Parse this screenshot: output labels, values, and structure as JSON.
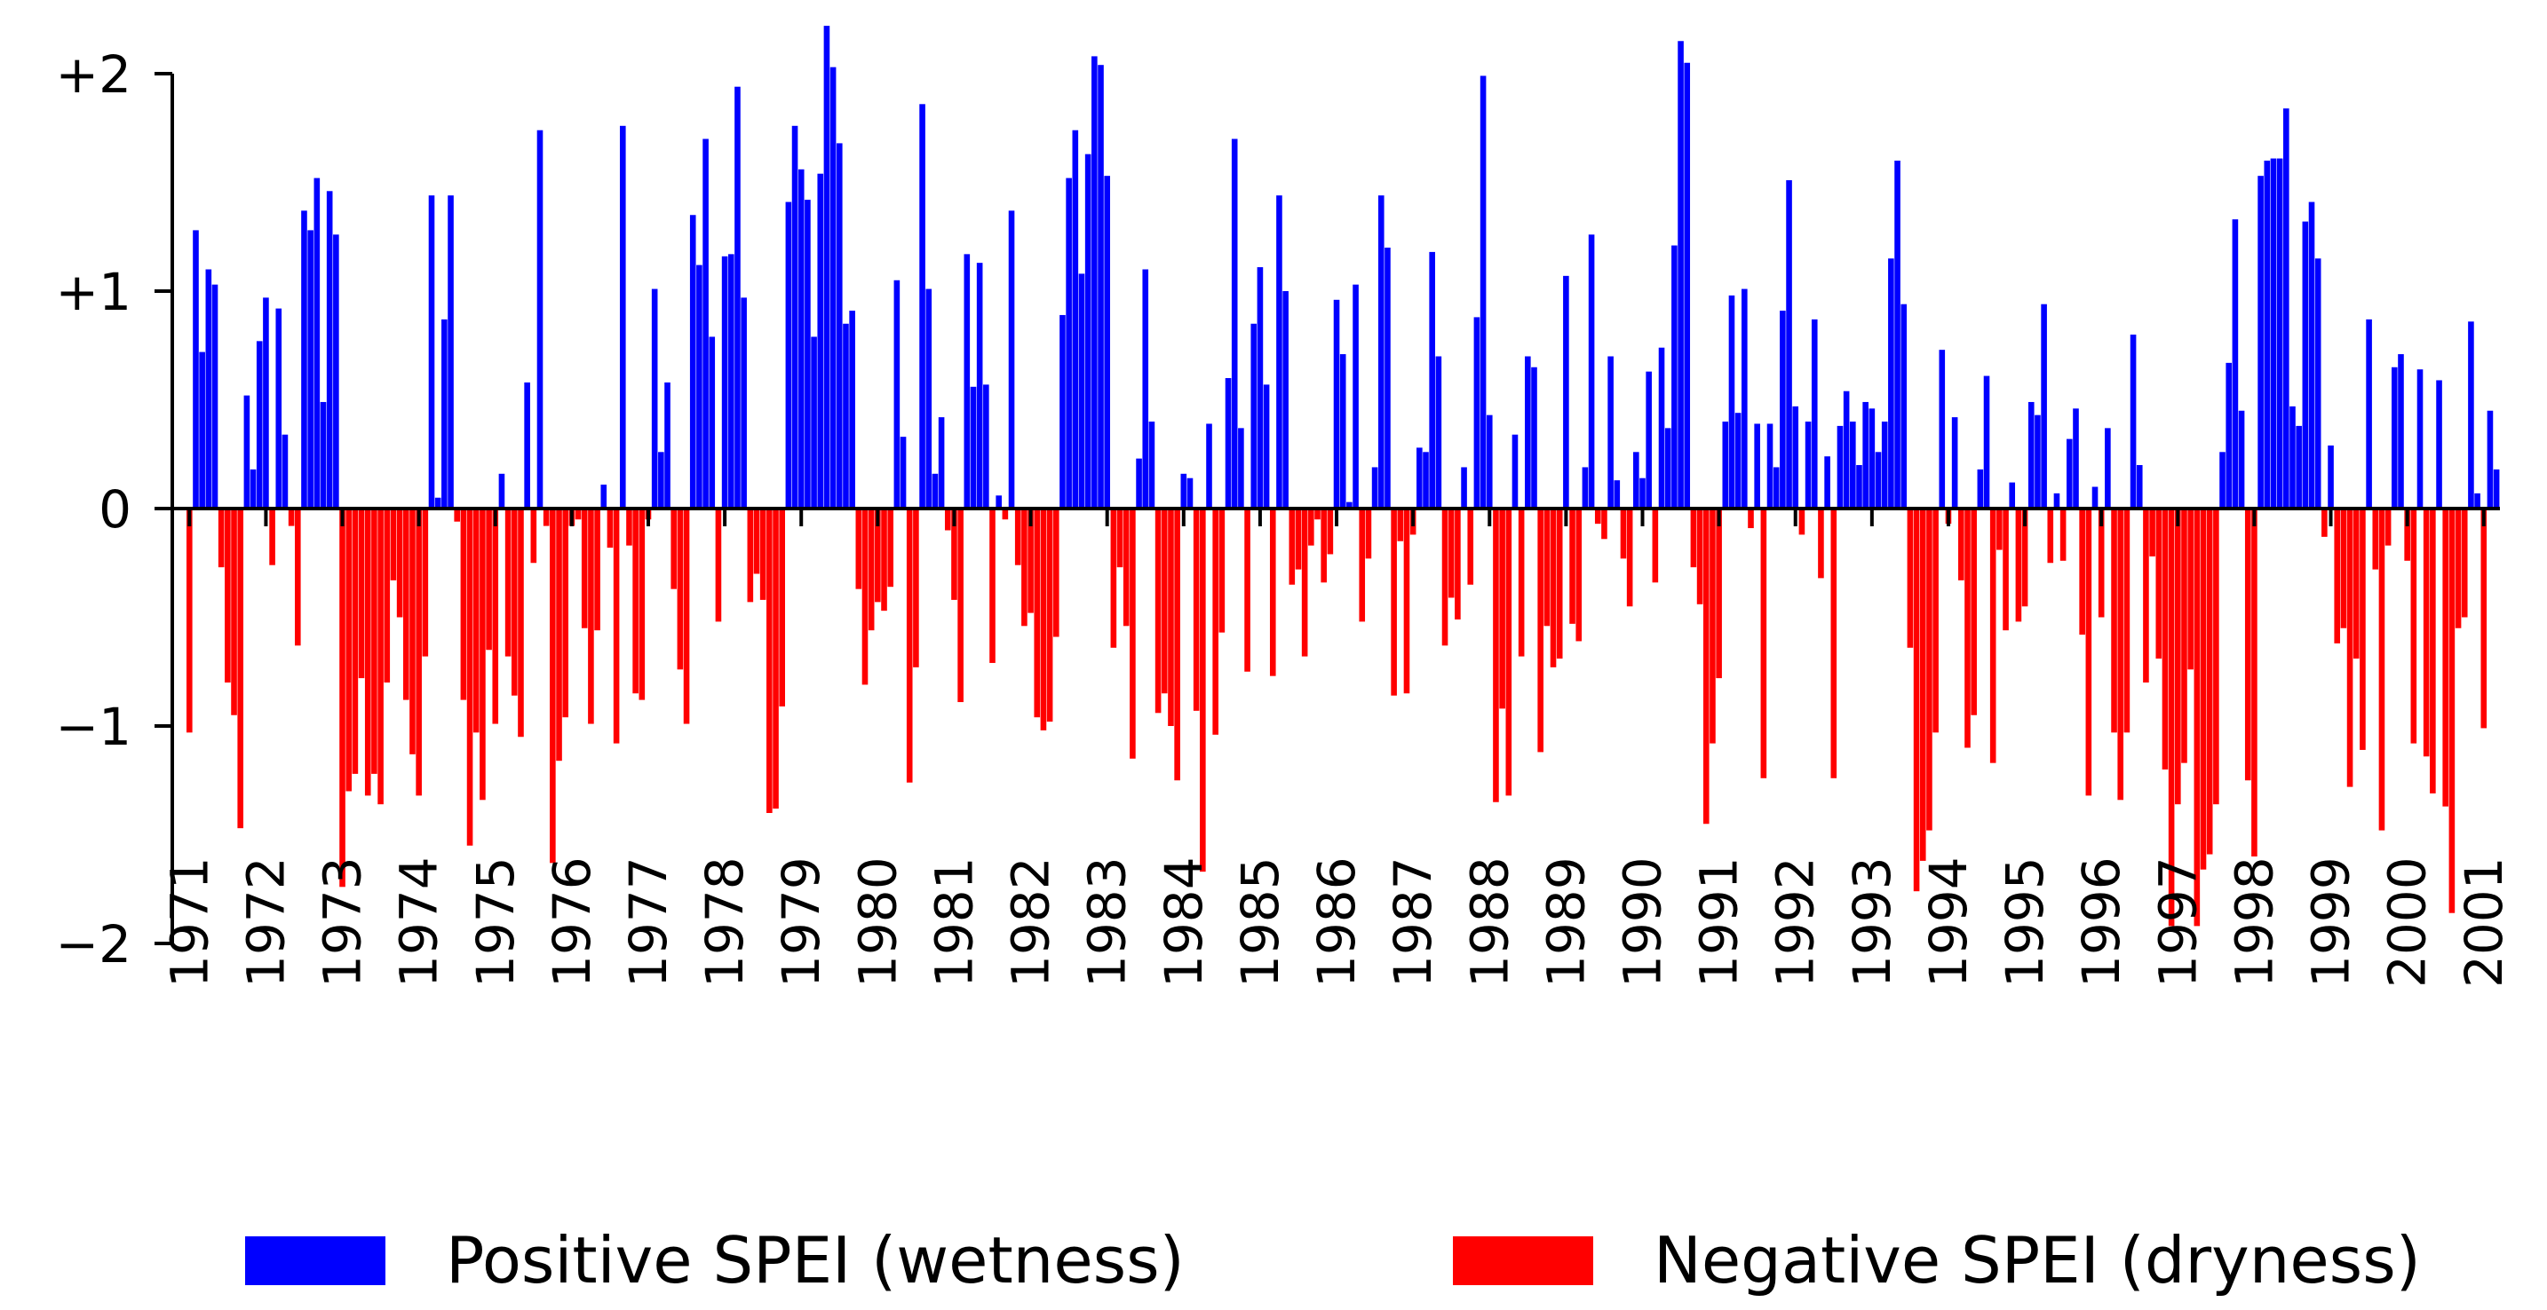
{
  "chart_data": {
    "type": "bar",
    "title": "",
    "xlabel": "",
    "ylabel": "",
    "ylim": [
      -2.05,
      2.2
    ],
    "y_ticks": [
      {
        "value": 2,
        "label": "+2"
      },
      {
        "value": 1,
        "label": "+1"
      },
      {
        "value": 0,
        "label": "0"
      },
      {
        "value": -1,
        "label": "−1"
      },
      {
        "value": -2,
        "label": "−2"
      }
    ],
    "x_tick_labels": [
      "1971",
      "1972",
      "1973",
      "1974",
      "1975",
      "1976",
      "1977",
      "1978",
      "1979",
      "1980",
      "1981",
      "1982",
      "1983",
      "1984",
      "1985",
      "1986",
      "1987",
      "1988",
      "1989",
      "1990",
      "1991",
      "1992",
      "1993",
      "1994",
      "1995",
      "1996",
      "1997",
      "1998",
      "1999",
      "2000",
      "2001"
    ],
    "start_year": 1971,
    "months_per_year": 12,
    "colors": {
      "positive": "#0000ff",
      "negative": "#ff0000",
      "axis": "#000000"
    },
    "series": [
      {
        "name": "Positive SPEI (wetness)",
        "color": "#0000ff"
      },
      {
        "name": "Negative SPEI (dryness)",
        "color": "#ff0000"
      }
    ],
    "values": [
      -1.03,
      1.28,
      0.72,
      1.1,
      1.03,
      -0.27,
      -0.8,
      -0.95,
      -1.47,
      0.52,
      0.18,
      0.77,
      0.97,
      -0.26,
      0.92,
      0.34,
      -0.08,
      -0.63,
      1.37,
      1.28,
      1.52,
      0.49,
      1.46,
      1.26,
      -1.74,
      -1.3,
      -1.22,
      -0.78,
      -1.32,
      -1.22,
      -1.36,
      -0.8,
      -0.33,
      -0.5,
      -0.88,
      -1.13,
      -1.32,
      -0.68,
      1.44,
      0.05,
      0.87,
      1.44,
      -0.06,
      -0.88,
      -1.55,
      -1.03,
      -1.34,
      -0.65,
      -0.99,
      0.16,
      -0.68,
      -0.86,
      -1.05,
      0.58,
      -0.25,
      1.74,
      -0.08,
      -1.63,
      -1.16,
      -0.96,
      -0.08,
      -0.05,
      -0.55,
      -0.99,
      -0.56,
      0.11,
      -0.18,
      -1.08,
      1.76,
      -0.17,
      -0.85,
      -0.88,
      -0.05,
      1.01,
      0.26,
      0.58,
      -0.37,
      -0.74,
      -0.99,
      1.35,
      1.12,
      1.7,
      0.79,
      -0.52,
      1.16,
      1.17,
      1.94,
      0.97,
      -0.43,
      -0.3,
      -0.42,
      -1.4,
      -1.38,
      -0.91,
      1.41,
      1.76,
      1.56,
      1.42,
      0.79,
      1.54,
      2.22,
      2.03,
      1.68,
      0.85,
      0.91,
      -0.37,
      -0.81,
      -0.56,
      -0.43,
      -0.47,
      -0.36,
      1.05,
      0.33,
      -1.26,
      -0.73,
      1.86,
      1.01,
      0.16,
      0.42,
      -0.1,
      -0.42,
      -0.89,
      1.17,
      0.56,
      1.13,
      0.57,
      -0.71,
      0.06,
      -0.05,
      1.37,
      -0.26,
      -0.54,
      -0.48,
      -0.96,
      -1.02,
      -0.98,
      -0.59,
      0.89,
      1.52,
      1.74,
      1.08,
      1.63,
      2.08,
      2.04,
      1.53,
      -0.64,
      -0.27,
      -0.54,
      -1.15,
      0.23,
      1.1,
      0.4,
      -0.94,
      -0.85,
      -1.0,
      -1.25,
      0.16,
      0.14,
      -0.93,
      -1.67,
      0.39,
      -1.04,
      -0.57,
      0.6,
      1.7,
      0.37,
      -0.75,
      0.85,
      1.11,
      0.57,
      -0.77,
      1.44,
      1.0,
      -0.35,
      -0.28,
      -0.68,
      -0.17,
      -0.05,
      -0.34,
      -0.21,
      0.96,
      0.71,
      0.03,
      1.03,
      -0.52,
      -0.23,
      0.19,
      1.44,
      1.2,
      -0.86,
      -0.15,
      -0.85,
      -0.12,
      0.28,
      0.26,
      1.18,
      0.7,
      -0.63,
      -0.41,
      -0.51,
      0.19,
      -0.35,
      0.88,
      1.99,
      0.43,
      -1.35,
      -0.92,
      -1.32,
      0.34,
      -0.68,
      0.7,
      0.65,
      -1.12,
      -0.54,
      -0.73,
      -0.69,
      1.07,
      -0.53,
      -0.61,
      0.19,
      1.26,
      -0.07,
      -0.14,
      0.7,
      0.13,
      -0.23,
      -0.45,
      0.26,
      0.14,
      0.63,
      -0.34,
      0.74,
      0.37,
      1.21,
      2.15,
      2.05,
      -0.27,
      -0.44,
      -1.45,
      -1.08,
      -0.78,
      0.4,
      0.98,
      0.44,
      1.01,
      -0.09,
      0.39,
      -1.24,
      0.39,
      0.19,
      0.91,
      1.51,
      0.47,
      -0.12,
      0.4,
      0.87,
      -0.32,
      0.24,
      -1.24,
      0.38,
      0.54,
      0.4,
      0.2,
      0.49,
      0.46,
      0.26,
      0.4,
      1.15,
      1.6,
      0.94,
      -0.64,
      -1.76,
      -1.62,
      -1.48,
      -1.03,
      0.73,
      -0.07,
      0.42,
      -0.33,
      -1.1,
      -0.95,
      0.18,
      0.61,
      -1.17,
      -0.19,
      -0.56,
      0.12,
      -0.52,
      -0.45,
      0.49,
      0.43,
      0.94,
      -0.25,
      0.07,
      -0.24,
      0.32,
      0.46,
      -0.58,
      -1.32,
      0.1,
      -0.5,
      0.37,
      -1.03,
      -1.34,
      -1.03,
      0.8,
      0.2,
      -0.8,
      -0.22,
      -0.69,
      -1.2,
      -1.92,
      -1.36,
      -1.17,
      -0.74,
      -1.92,
      -1.66,
      -1.59,
      -1.36,
      0.26,
      0.67,
      1.33,
      0.45,
      -1.25,
      -1.6,
      1.53,
      1.6,
      1.61,
      1.61,
      1.84,
      0.47,
      0.38,
      1.32,
      1.41,
      1.15,
      -0.13,
      0.29,
      -0.62,
      -0.55,
      -1.28,
      -0.69,
      -1.11,
      0.87,
      -0.28,
      -1.48,
      -0.17,
      0.65,
      0.71,
      -0.24,
      -1.08,
      0.64,
      -1.14,
      -1.31,
      0.59,
      -1.37,
      -1.86,
      -0.55,
      -0.5,
      0.86,
      0.07,
      -1.01,
      0.45,
      0.18
    ]
  },
  "legend": {
    "positive_label": "Positive SPEI (wetness)",
    "negative_label": "Negative SPEI (dryness)"
  }
}
